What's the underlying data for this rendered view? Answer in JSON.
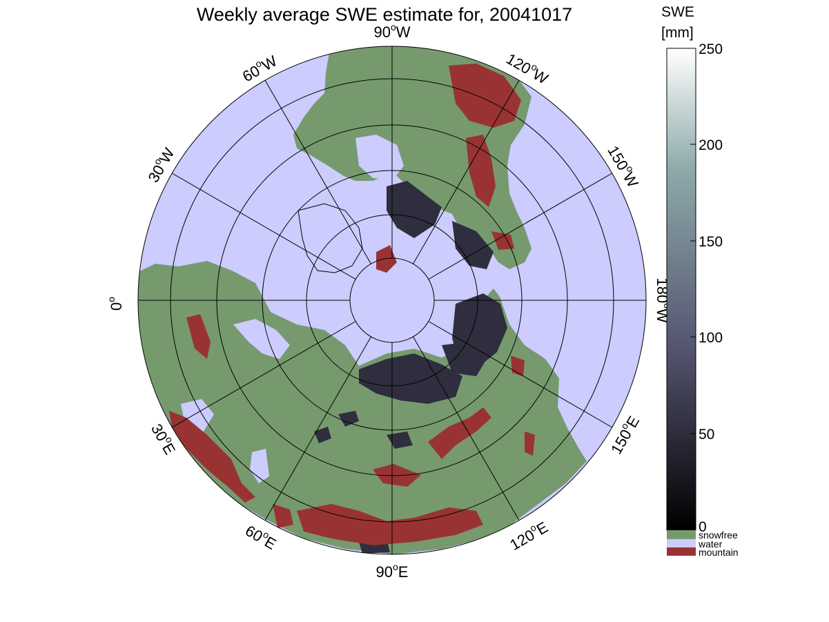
{
  "title": "Weekly average SWE estimate for, 20041017",
  "colorbar": {
    "title_line1": "SWE",
    "title_line2": "[mm]",
    "ticks": [
      "250",
      "200",
      "150",
      "100",
      "50",
      "0"
    ],
    "tick_values": [
      250,
      200,
      150,
      100,
      50,
      0
    ],
    "range": [
      0,
      250
    ],
    "colormap": "bone",
    "categories": [
      {
        "label": "snowfree",
        "color": "#769a6e"
      },
      {
        "label": "water",
        "color": "#ccccff"
      },
      {
        "label": "mountain",
        "color": "#993333"
      }
    ]
  },
  "map": {
    "projection": "polar stereographic (north pole)",
    "colors": {
      "water": "#ccccff",
      "land": "#769a6e",
      "mountain": "#993333",
      "snow_low": "#2e2e3e",
      "grid": "#000000"
    },
    "longitude_labels": [
      {
        "base": "90",
        "dir": "W"
      },
      {
        "base": "120",
        "dir": "W"
      },
      {
        "base": "150",
        "dir": "W"
      },
      {
        "base": "180",
        "dir": "W"
      },
      {
        "base": "150",
        "dir": "E"
      },
      {
        "base": "120",
        "dir": "E"
      },
      {
        "base": "90",
        "dir": "E"
      },
      {
        "base": "60",
        "dir": "E"
      },
      {
        "base": "30",
        "dir": "E"
      },
      {
        "base": "0",
        "dir": ""
      },
      {
        "base": "30",
        "dir": "W"
      },
      {
        "base": "60",
        "dir": "W"
      }
    ],
    "degree_symbol": "o"
  }
}
